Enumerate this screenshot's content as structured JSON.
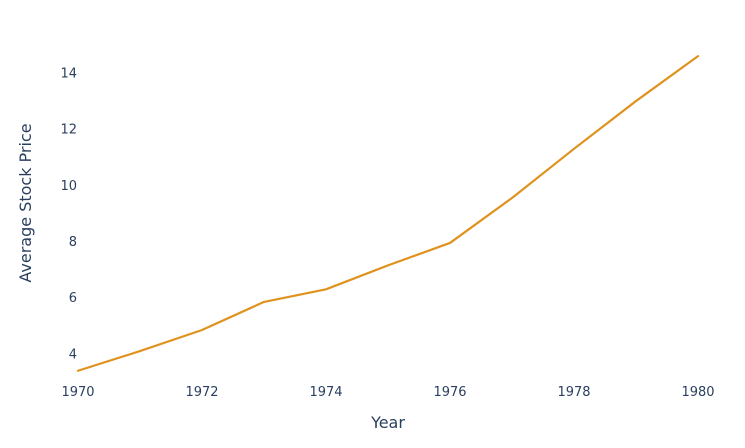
{
  "chart_data": {
    "type": "line",
    "title": "",
    "xlabel": "Year",
    "ylabel": "Average Stock Price",
    "x": [
      1970,
      1971,
      1972,
      1973,
      1974,
      1975,
      1976,
      1977,
      1978,
      1979,
      1980
    ],
    "series": [
      {
        "values": [
          3.4,
          4.1,
          4.85,
          5.85,
          6.3,
          7.15,
          7.95,
          9.55,
          11.3,
          13.0,
          14.6
        ],
        "color": "#e0921f"
      }
    ],
    "xticks": [
      "1970",
      "1972",
      "1974",
      "1976",
      "1978",
      "1980"
    ],
    "yticks": [
      "4",
      "6",
      "8",
      "10",
      "12",
      "14"
    ],
    "xlim": [
      1970,
      1980
    ],
    "ylim": [
      3.0,
      15.6
    ],
    "grid": false,
    "legend": "none"
  }
}
